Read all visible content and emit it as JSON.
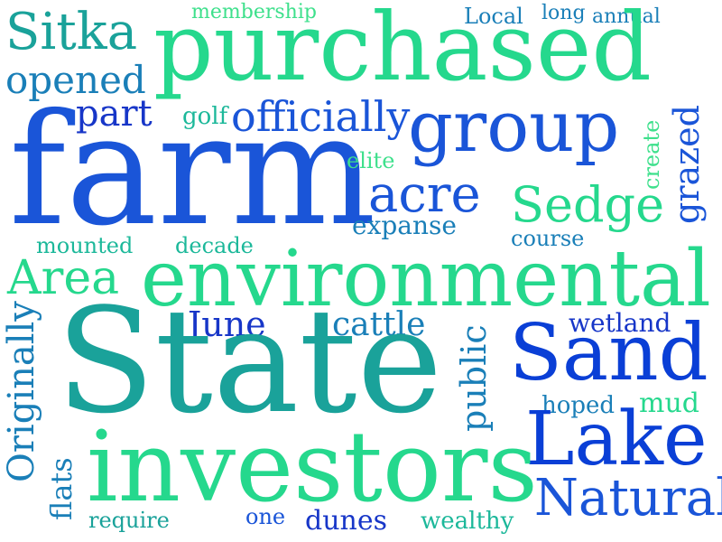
{
  "palette": {
    "royal_blue": "#0a3fd6",
    "blue": "#1a55d8",
    "mid_blue": "#2a74c7",
    "teal": "#1aa29a",
    "teal_light": "#1cb89a",
    "green": "#25d88d",
    "green_light": "#3ee08c",
    "ocean": "#1a7fb8",
    "navy_blue": "#1736c8"
  },
  "words": {
    "membership": "membership",
    "local": "Local",
    "long": "long",
    "annual": "annual",
    "sitka": "Sitka",
    "purchased": "purchased",
    "opened": "opened",
    "part": "part",
    "golf": "golf",
    "officially": "officially",
    "group": "group",
    "grazed": "grazed",
    "farm": "farm",
    "elite": "elite",
    "create": "create",
    "acre": "acre",
    "sedge": "Sedge",
    "expanse": "expanse",
    "mounted": "mounted",
    "decade": "decade",
    "course": "course",
    "area": "Area",
    "environmental": "environmental",
    "june": "June",
    "cattle": "cattle",
    "wetland": "wetland",
    "originally": "Originally",
    "state": "State",
    "public": "public",
    "sand": "Sand",
    "hoped": "hoped",
    "mud": "mud",
    "lake": "Lake",
    "investors": "investors",
    "flats": "flats",
    "natural": "Natural",
    "require": "require",
    "one": "one",
    "dunes": "dunes",
    "wealthy": "wealthy"
  }
}
